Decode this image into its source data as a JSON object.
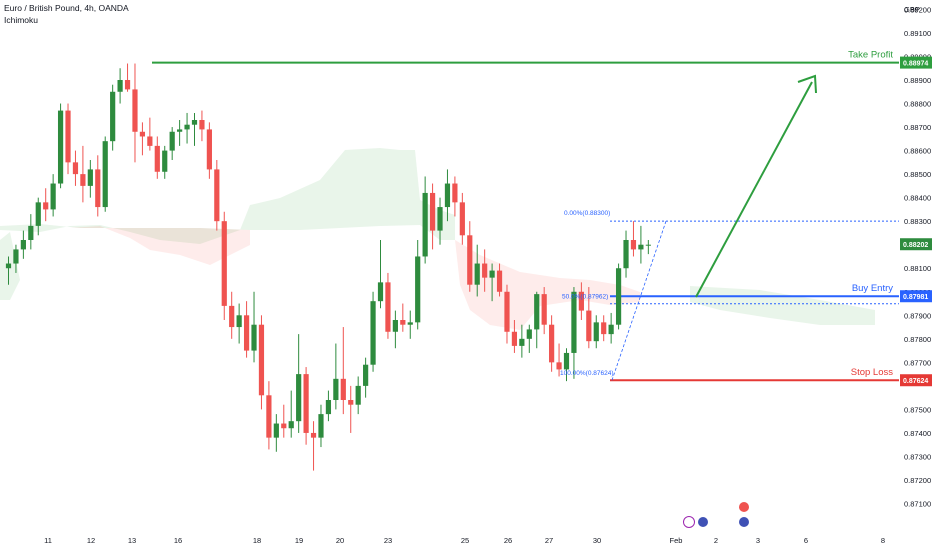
{
  "header": {
    "title": "Euro / British Pound, 4h, OANDA",
    "indicator": "Ichimoku"
  },
  "currency_label": "GBP",
  "colors": {
    "up": "#26a69a",
    "upBody": "#2e8b3e",
    "down": "#ef5350",
    "tp": "#2e9e3f",
    "buy": "#2962ff",
    "sl": "#e53935",
    "cloudUp": "rgba(76,175,80,0.12)",
    "cloudDown": "rgba(244,67,54,0.10)"
  },
  "chart_data": {
    "type": "candlestick",
    "title": "Euro / British Pound, 4h, OANDA",
    "ylim": [
      0.8703,
      0.8924
    ],
    "y_ticks": [
      "0.89200",
      "0.89100",
      "0.89000",
      "0.88900",
      "0.88800",
      "0.88700",
      "0.88600",
      "0.88500",
      "0.88400",
      "0.88300",
      "0.88100",
      "0.88000",
      "0.87900",
      "0.87800",
      "0.87700",
      "0.87500",
      "0.87400",
      "0.87300",
      "0.87200",
      "0.87100"
    ],
    "x_ticks": [
      "11",
      "12",
      "13",
      "16",
      "18",
      "19",
      "20",
      "23",
      "25",
      "26",
      "27",
      "30",
      "Feb",
      "2",
      "3",
      "6",
      "8"
    ],
    "grid": false,
    "levels": [
      {
        "name": "Take Profit",
        "value": 0.88974,
        "label": "0.88974"
      },
      {
        "name": "Buy Entry",
        "value": 0.87981,
        "label": "0.87981"
      },
      {
        "name": "Stop Loss",
        "value": 0.87624,
        "label": "0.87624"
      }
    ],
    "current_price": {
      "value": 0.88202,
      "label": "0.88202"
    },
    "fib": [
      {
        "text": "0.00%(0.88300)",
        "value": 0.883
      },
      {
        "text": "50.0%(0.87962)",
        "value": 0.87962
      },
      {
        "text": "100.00%(0.87624)",
        "value": 0.87624
      }
    ],
    "candles": [
      {
        "t": 1,
        "o": 0.881,
        "h": 0.8815,
        "l": 0.8803,
        "c": 0.8812
      },
      {
        "t": 2,
        "o": 0.8812,
        "h": 0.882,
        "l": 0.8808,
        "c": 0.8818
      },
      {
        "t": 3,
        "o": 0.8818,
        "h": 0.8826,
        "l": 0.8814,
        "c": 0.8822
      },
      {
        "t": 4,
        "o": 0.8822,
        "h": 0.8833,
        "l": 0.8818,
        "c": 0.8828
      },
      {
        "t": 5,
        "o": 0.8828,
        "h": 0.884,
        "l": 0.8824,
        "c": 0.8838
      },
      {
        "t": 6,
        "o": 0.8838,
        "h": 0.8844,
        "l": 0.883,
        "c": 0.8835
      },
      {
        "t": 7,
        "o": 0.8835,
        "h": 0.885,
        "l": 0.8832,
        "c": 0.8846
      },
      {
        "t": 8,
        "o": 0.8846,
        "h": 0.888,
        "l": 0.8844,
        "c": 0.8877
      },
      {
        "t": 9,
        "o": 0.8877,
        "h": 0.888,
        "l": 0.885,
        "c": 0.8855
      },
      {
        "t": 10,
        "o": 0.8855,
        "h": 0.886,
        "l": 0.8845,
        "c": 0.885
      },
      {
        "t": 11,
        "o": 0.885,
        "h": 0.8862,
        "l": 0.8838,
        "c": 0.8845
      },
      {
        "t": 12,
        "o": 0.8845,
        "h": 0.8856,
        "l": 0.884,
        "c": 0.8852
      },
      {
        "t": 13,
        "o": 0.8852,
        "h": 0.8858,
        "l": 0.8832,
        "c": 0.8836
      },
      {
        "t": 14,
        "o": 0.8836,
        "h": 0.8866,
        "l": 0.8834,
        "c": 0.8864
      },
      {
        "t": 15,
        "o": 0.8864,
        "h": 0.8888,
        "l": 0.886,
        "c": 0.8885
      },
      {
        "t": 16,
        "o": 0.8885,
        "h": 0.8895,
        "l": 0.888,
        "c": 0.889
      },
      {
        "t": 17,
        "o": 0.889,
        "h": 0.8897,
        "l": 0.8885,
        "c": 0.8886
      },
      {
        "t": 18,
        "o": 0.8886,
        "h": 0.8897,
        "l": 0.8855,
        "c": 0.8868
      },
      {
        "t": 19,
        "o": 0.8868,
        "h": 0.8872,
        "l": 0.8858,
        "c": 0.8866
      },
      {
        "t": 20,
        "o": 0.8866,
        "h": 0.8874,
        "l": 0.886,
        "c": 0.8862
      },
      {
        "t": 21,
        "o": 0.8862,
        "h": 0.8866,
        "l": 0.8848,
        "c": 0.8851
      },
      {
        "t": 22,
        "o": 0.8851,
        "h": 0.8862,
        "l": 0.8848,
        "c": 0.886
      },
      {
        "t": 23,
        "o": 0.886,
        "h": 0.887,
        "l": 0.8856,
        "c": 0.8868
      },
      {
        "t": 24,
        "o": 0.8868,
        "h": 0.8873,
        "l": 0.8862,
        "c": 0.8869
      },
      {
        "t": 25,
        "o": 0.8869,
        "h": 0.8876,
        "l": 0.8863,
        "c": 0.8871
      },
      {
        "t": 26,
        "o": 0.8871,
        "h": 0.8876,
        "l": 0.8862,
        "c": 0.8873
      },
      {
        "t": 27,
        "o": 0.8873,
        "h": 0.8877,
        "l": 0.8864,
        "c": 0.8869
      },
      {
        "t": 28,
        "o": 0.8869,
        "h": 0.8872,
        "l": 0.8848,
        "c": 0.8852
      },
      {
        "t": 29,
        "o": 0.8852,
        "h": 0.8856,
        "l": 0.8826,
        "c": 0.883
      },
      {
        "t": 30,
        "o": 0.883,
        "h": 0.8834,
        "l": 0.8788,
        "c": 0.8794
      },
      {
        "t": 31,
        "o": 0.8794,
        "h": 0.88,
        "l": 0.878,
        "c": 0.8785
      },
      {
        "t": 32,
        "o": 0.8785,
        "h": 0.8795,
        "l": 0.8778,
        "c": 0.879
      },
      {
        "t": 33,
        "o": 0.879,
        "h": 0.8796,
        "l": 0.8772,
        "c": 0.8775
      },
      {
        "t": 34,
        "o": 0.8775,
        "h": 0.88,
        "l": 0.877,
        "c": 0.8786
      },
      {
        "t": 35,
        "o": 0.8786,
        "h": 0.879,
        "l": 0.875,
        "c": 0.8756
      },
      {
        "t": 36,
        "o": 0.8756,
        "h": 0.8762,
        "l": 0.8733,
        "c": 0.8738
      },
      {
        "t": 37,
        "o": 0.8738,
        "h": 0.8748,
        "l": 0.8732,
        "c": 0.8744
      },
      {
        "t": 38,
        "o": 0.8744,
        "h": 0.8752,
        "l": 0.8738,
        "c": 0.8742
      },
      {
        "t": 39,
        "o": 0.8742,
        "h": 0.8758,
        "l": 0.8738,
        "c": 0.8745
      },
      {
        "t": 40,
        "o": 0.8745,
        "h": 0.8782,
        "l": 0.874,
        "c": 0.8765
      },
      {
        "t": 41,
        "o": 0.8765,
        "h": 0.8768,
        "l": 0.8735,
        "c": 0.874
      },
      {
        "t": 42,
        "o": 0.874,
        "h": 0.8745,
        "l": 0.8724,
        "c": 0.8738
      },
      {
        "t": 43,
        "o": 0.8738,
        "h": 0.8752,
        "l": 0.8734,
        "c": 0.8748
      },
      {
        "t": 44,
        "o": 0.8748,
        "h": 0.8758,
        "l": 0.8745,
        "c": 0.8754
      },
      {
        "t": 45,
        "o": 0.8754,
        "h": 0.8778,
        "l": 0.875,
        "c": 0.8763
      },
      {
        "t": 46,
        "o": 0.8763,
        "h": 0.8785,
        "l": 0.8748,
        "c": 0.8754
      },
      {
        "t": 47,
        "o": 0.8754,
        "h": 0.876,
        "l": 0.874,
        "c": 0.8752
      },
      {
        "t": 48,
        "o": 0.8752,
        "h": 0.8764,
        "l": 0.8748,
        "c": 0.876
      },
      {
        "t": 49,
        "o": 0.876,
        "h": 0.8772,
        "l": 0.8755,
        "c": 0.8769
      },
      {
        "t": 50,
        "o": 0.8769,
        "h": 0.88,
        "l": 0.8766,
        "c": 0.8796
      },
      {
        "t": 51,
        "o": 0.8796,
        "h": 0.8822,
        "l": 0.8793,
        "c": 0.8804
      },
      {
        "t": 52,
        "o": 0.8804,
        "h": 0.8808,
        "l": 0.878,
        "c": 0.8783
      },
      {
        "t": 53,
        "o": 0.8783,
        "h": 0.8792,
        "l": 0.8776,
        "c": 0.8788
      },
      {
        "t": 54,
        "o": 0.8788,
        "h": 0.8795,
        "l": 0.8783,
        "c": 0.8786
      },
      {
        "t": 55,
        "o": 0.8786,
        "h": 0.8792,
        "l": 0.878,
        "c": 0.8787
      },
      {
        "t": 56,
        "o": 0.8787,
        "h": 0.8822,
        "l": 0.8784,
        "c": 0.8815
      },
      {
        "t": 57,
        "o": 0.8815,
        "h": 0.8849,
        "l": 0.8812,
        "c": 0.8842
      },
      {
        "t": 58,
        "o": 0.8842,
        "h": 0.8846,
        "l": 0.8818,
        "c": 0.8826
      },
      {
        "t": 59,
        "o": 0.8826,
        "h": 0.884,
        "l": 0.882,
        "c": 0.8836
      },
      {
        "t": 60,
        "o": 0.8836,
        "h": 0.8852,
        "l": 0.883,
        "c": 0.8846
      },
      {
        "t": 61,
        "o": 0.8846,
        "h": 0.8849,
        "l": 0.8832,
        "c": 0.8838
      },
      {
        "t": 62,
        "o": 0.8838,
        "h": 0.8842,
        "l": 0.882,
        "c": 0.8824
      },
      {
        "t": 63,
        "o": 0.8824,
        "h": 0.883,
        "l": 0.88,
        "c": 0.8803
      },
      {
        "t": 64,
        "o": 0.8803,
        "h": 0.882,
        "l": 0.8798,
        "c": 0.8812
      },
      {
        "t": 65,
        "o": 0.8812,
        "h": 0.8818,
        "l": 0.88,
        "c": 0.8806
      },
      {
        "t": 66,
        "o": 0.8806,
        "h": 0.8812,
        "l": 0.8796,
        "c": 0.8809
      },
      {
        "t": 67,
        "o": 0.8809,
        "h": 0.8812,
        "l": 0.8798,
        "c": 0.88
      },
      {
        "t": 68,
        "o": 0.88,
        "h": 0.8803,
        "l": 0.8778,
        "c": 0.8783
      },
      {
        "t": 69,
        "o": 0.8783,
        "h": 0.8788,
        "l": 0.8774,
        "c": 0.8777
      },
      {
        "t": 70,
        "o": 0.8777,
        "h": 0.8786,
        "l": 0.8772,
        "c": 0.878
      },
      {
        "t": 71,
        "o": 0.878,
        "h": 0.8786,
        "l": 0.8774,
        "c": 0.8784
      },
      {
        "t": 72,
        "o": 0.8784,
        "h": 0.88,
        "l": 0.8776,
        "c": 0.8799
      },
      {
        "t": 73,
        "o": 0.8799,
        "h": 0.8802,
        "l": 0.8782,
        "c": 0.8786
      },
      {
        "t": 74,
        "o": 0.8786,
        "h": 0.879,
        "l": 0.8766,
        "c": 0.877
      },
      {
        "t": 75,
        "o": 0.877,
        "h": 0.8778,
        "l": 0.8764,
        "c": 0.8767
      },
      {
        "t": 76,
        "o": 0.8767,
        "h": 0.8776,
        "l": 0.8762,
        "c": 0.8774
      },
      {
        "t": 77,
        "o": 0.8774,
        "h": 0.8802,
        "l": 0.8763,
        "c": 0.88
      },
      {
        "t": 78,
        "o": 0.88,
        "h": 0.8804,
        "l": 0.8788,
        "c": 0.8792
      },
      {
        "t": 79,
        "o": 0.8792,
        "h": 0.8802,
        "l": 0.8776,
        "c": 0.8779
      },
      {
        "t": 80,
        "o": 0.8779,
        "h": 0.879,
        "l": 0.8776,
        "c": 0.8787
      },
      {
        "t": 81,
        "o": 0.8787,
        "h": 0.879,
        "l": 0.8779,
        "c": 0.8782
      },
      {
        "t": 82,
        "o": 0.8782,
        "h": 0.8791,
        "l": 0.8778,
        "c": 0.8786
      },
      {
        "t": 83,
        "o": 0.8786,
        "h": 0.8812,
        "l": 0.8784,
        "c": 0.881
      },
      {
        "t": 84,
        "o": 0.881,
        "h": 0.8826,
        "l": 0.8806,
        "c": 0.8822
      },
      {
        "t": 85,
        "o": 0.8822,
        "h": 0.883,
        "l": 0.8815,
        "c": 0.8818
      },
      {
        "t": 86,
        "o": 0.8818,
        "h": 0.8828,
        "l": 0.8812,
        "c": 0.882
      },
      {
        "t": 87,
        "o": 0.882,
        "h": 0.8822,
        "l": 0.8816,
        "c": 0.882
      }
    ]
  }
}
